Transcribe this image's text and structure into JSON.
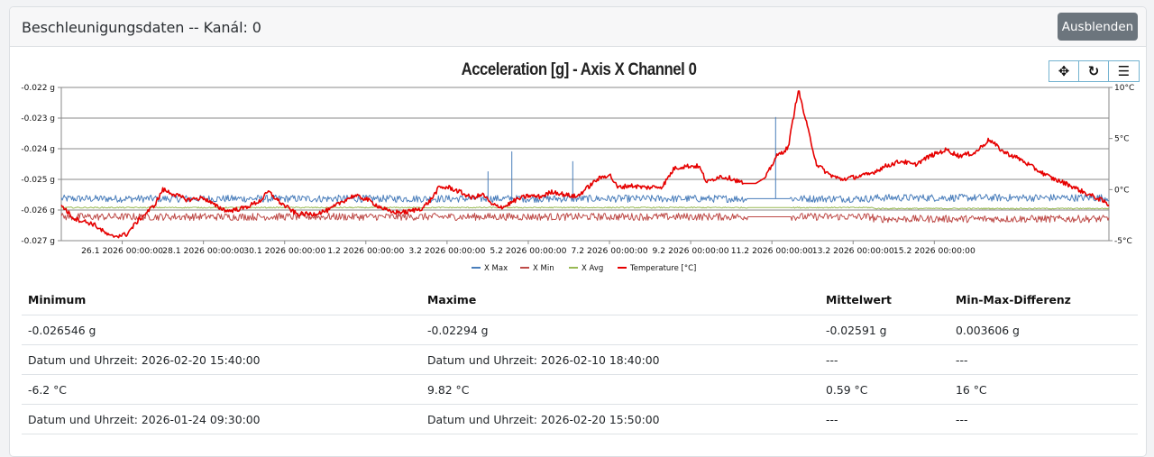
{
  "header": {
    "title": "Beschleunigungsdaten -- Kanál: 0",
    "hide_button": "Ausblenden"
  },
  "toolbar": {
    "pan_icon": "✥",
    "reset_icon": "↻",
    "menu_icon": "☰"
  },
  "chart_data": {
    "type": "line",
    "title": "Acceleration [g] - Axis  X Channel 0",
    "xlabel": "",
    "ylabel": "Acceleration [g]",
    "y2label": "Temperature [°C]",
    "ylim": [
      -0.027,
      -0.022
    ],
    "y2lim": [
      -5,
      10
    ],
    "y_ticks": [
      "-0.022 g",
      "-0.023 g",
      "-0.024 g",
      "-0.025 g",
      "-0.026 g",
      "-0.027 g"
    ],
    "y2_ticks": [
      "10°C",
      "5°C",
      "0°C",
      "-5°C"
    ],
    "x_ticks": [
      "26.1 2026 00:00:00",
      "28.1 2026 00:00:00",
      "30.1 2026 00:00:00",
      "1.2 2026 00:00:00",
      "3.2 2026 00:00:00",
      "5.2 2026 00:00:00",
      "7.2 2026 00:00:00",
      "9.2 2026 00:00:00",
      "11.2 2026 00:00:00",
      "13.2 2026 00:00:00",
      "15.2 2026 00:00:00"
    ],
    "grid": true,
    "legend_position": "bottom",
    "x_days": [
      0,
      1,
      2,
      3,
      4,
      5,
      6,
      7,
      8,
      9,
      10,
      11,
      12,
      13,
      14,
      15,
      16,
      17,
      18,
      19,
      20,
      21,
      22
    ],
    "x_start": "24.1 2026 12:00",
    "series": [
      {
        "name": "X Max",
        "color": "#4a7ebb",
        "axis": "left",
        "base": -0.02563,
        "noise": 0.00012,
        "spikes": [
          {
            "day": 10.5,
            "value": -0.02475
          },
          {
            "day": 11.1,
            "value": -0.0241
          },
          {
            "day": 12.6,
            "value": -0.02442
          },
          {
            "day": 17.6,
            "value": -0.02298
          }
        ]
      },
      {
        "name": "X Min",
        "color": "#be4b48",
        "axis": "left",
        "base": -0.02622,
        "noise": 0.00012
      },
      {
        "name": "X Avg",
        "color": "#98b954",
        "axis": "left",
        "base": -0.02592,
        "noise": 2e-05
      },
      {
        "name": "Temperature [°C]",
        "color": "#e60000",
        "axis": "right",
        "points": [
          [
            0,
            -1.5
          ],
          [
            0.3,
            -2.8
          ],
          [
            0.8,
            -3.4
          ],
          [
            1.2,
            -4.6
          ],
          [
            1.6,
            -4.4
          ],
          [
            1.9,
            -3.0
          ],
          [
            2.3,
            -1.5
          ],
          [
            2.5,
            0.0
          ],
          [
            2.8,
            -0.5
          ],
          [
            3.1,
            -1.0
          ],
          [
            3.5,
            -0.8
          ],
          [
            3.8,
            -1.6
          ],
          [
            4.1,
            -2.1
          ],
          [
            4.5,
            -1.8
          ],
          [
            4.9,
            -1.1
          ],
          [
            5.1,
            -0.2
          ],
          [
            5.4,
            -1.3
          ],
          [
            5.8,
            -2.4
          ],
          [
            6.2,
            -2.4
          ],
          [
            6.6,
            -2.0
          ],
          [
            6.9,
            -1.2
          ],
          [
            7.2,
            -0.6
          ],
          [
            7.5,
            -0.9
          ],
          [
            7.8,
            -1.6
          ],
          [
            8.1,
            -2.2
          ],
          [
            8.5,
            -2.2
          ],
          [
            8.9,
            -1.8
          ],
          [
            9.1,
            -1.0
          ],
          [
            9.3,
            0.2
          ],
          [
            9.55,
            0.2
          ],
          [
            9.8,
            -0.2
          ],
          [
            10.1,
            -0.8
          ],
          [
            10.4,
            -0.5
          ],
          [
            10.6,
            -1.5
          ],
          [
            10.9,
            -1.7
          ],
          [
            11.2,
            -1.0
          ],
          [
            11.5,
            -0.6
          ],
          [
            11.8,
            -0.7
          ],
          [
            12.1,
            -0.2
          ],
          [
            12.4,
            -0.5
          ],
          [
            12.7,
            -0.7
          ],
          [
            12.9,
            0.0
          ],
          [
            13.2,
            1.0
          ],
          [
            13.5,
            1.5
          ],
          [
            13.7,
            0.2
          ],
          [
            14.0,
            0.4
          ],
          [
            14.4,
            0.2
          ],
          [
            14.8,
            0.3
          ],
          [
            15.1,
            2.1
          ],
          [
            15.4,
            2.3
          ],
          [
            15.7,
            2.3
          ],
          [
            15.9,
            0.7
          ],
          [
            16.2,
            1.3
          ],
          [
            16.5,
            1.1
          ],
          [
            16.8,
            0.6
          ],
          [
            17.1,
            0.6
          ],
          [
            17.35,
            1.2
          ],
          [
            17.6,
            3.2
          ],
          [
            17.9,
            4.1
          ],
          [
            18.15,
            9.8
          ],
          [
            18.35,
            6.5
          ],
          [
            18.6,
            2.5
          ],
          [
            18.9,
            1.5
          ],
          [
            19.2,
            1.0
          ],
          [
            19.5,
            1.2
          ],
          [
            19.9,
            1.5
          ],
          [
            20.3,
            2.3
          ],
          [
            20.7,
            2.8
          ],
          [
            21.0,
            2.4
          ],
          [
            21.4,
            3.3
          ],
          [
            21.8,
            3.9
          ],
          [
            22.1,
            3.3
          ],
          [
            22.5,
            3.6
          ],
          [
            22.85,
            4.9
          ],
          [
            23.2,
            3.7
          ],
          [
            23.6,
            3.0
          ],
          [
            24.0,
            2.0
          ],
          [
            24.4,
            1.1
          ],
          [
            24.8,
            0.5
          ],
          [
            25.2,
            -0.3
          ],
          [
            25.6,
            -1.0
          ],
          [
            25.8,
            -1.5
          ]
        ]
      }
    ]
  },
  "table": {
    "headers": [
      "Minimum",
      "Maxime",
      "Mittelwert",
      "Min-Max-Differenz"
    ],
    "rows": [
      [
        "-0.026546 g",
        "-0.02294 g",
        "-0.02591 g",
        "0.003606 g"
      ],
      [
        "Datum und Uhrzeit: 2026-02-20 15:40:00",
        "Datum und Uhrzeit: 2026-02-10 18:40:00",
        "---",
        "---"
      ],
      [
        "-6.2 °C",
        "9.82 °C",
        "0.59 °C",
        "16 °C"
      ],
      [
        "Datum und Uhrzeit: 2026-01-24 09:30:00",
        "Datum und Uhrzeit: 2026-02-20 15:50:00",
        "---",
        "---"
      ]
    ]
  }
}
